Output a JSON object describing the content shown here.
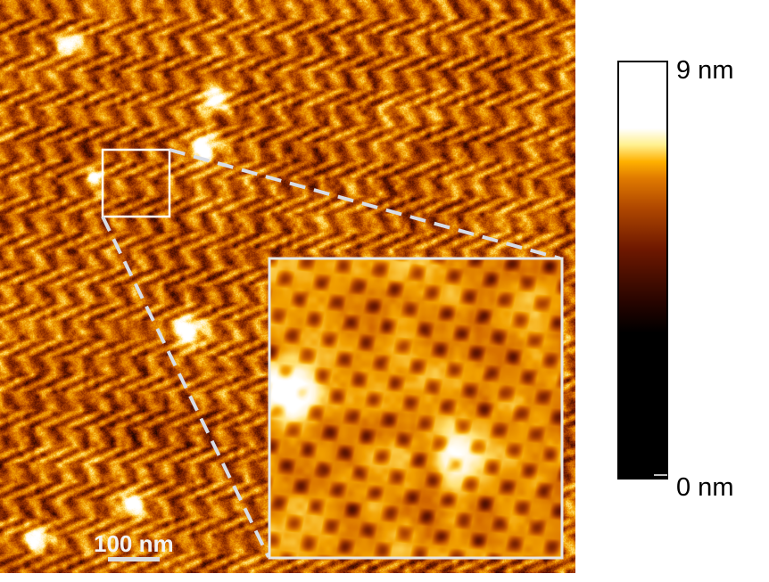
{
  "image": {
    "description_colors": {
      "colormap": [
        "#000000",
        "#000000",
        "#2a0600",
        "#6e1a00",
        "#a63d00",
        "#d46a00",
        "#f2a100",
        "#ffe070",
        "#fff5d8",
        "#ffffff"
      ]
    }
  },
  "scale_bar": {
    "label": "100 nm"
  },
  "colorbar": {
    "max_label": "9 nm",
    "min_label": "0 nm"
  }
}
